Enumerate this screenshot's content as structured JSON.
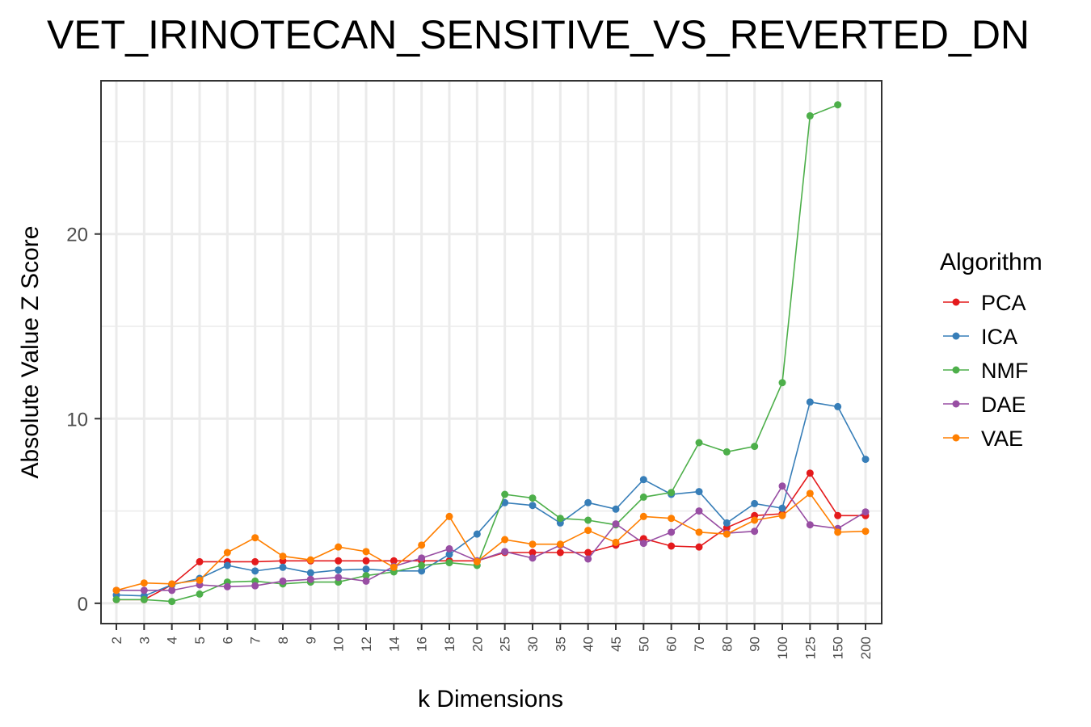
{
  "chart_data": {
    "type": "line",
    "title": "VET_IRINOTECAN_SENSITIVE_VS_REVERTED_DN",
    "xlabel": "k Dimensions",
    "ylabel": "Absolute Value Z Score",
    "categories": [
      "2",
      "3",
      "4",
      "5",
      "6",
      "7",
      "8",
      "9",
      "10",
      "12",
      "14",
      "16",
      "18",
      "20",
      "25",
      "30",
      "35",
      "40",
      "45",
      "50",
      "60",
      "70",
      "80",
      "90",
      "100",
      "125",
      "150",
      "200"
    ],
    "y_ticks": [
      0,
      10,
      20
    ],
    "ylim": [
      -1.1,
      28.3
    ],
    "grid": true,
    "legend": {
      "title": "Algorithm",
      "position": "right"
    },
    "series": [
      {
        "name": "PCA",
        "color": "#e41a1c",
        "values": [
          0.2,
          0.2,
          1.0,
          2.25,
          2.25,
          2.25,
          2.3,
          2.3,
          2.3,
          2.3,
          2.3,
          2.3,
          2.3,
          2.3,
          2.75,
          2.75,
          2.75,
          2.75,
          3.15,
          3.5,
          3.1,
          3.05,
          4.1,
          4.75,
          4.85,
          7.05,
          4.75,
          4.75
        ]
      },
      {
        "name": "ICA",
        "color": "#377eb8",
        "values": [
          0.45,
          0.4,
          1.0,
          1.35,
          2.05,
          1.75,
          1.95,
          1.65,
          1.8,
          1.85,
          1.75,
          1.75,
          2.65,
          3.75,
          5.45,
          5.3,
          4.35,
          5.45,
          5.1,
          6.7,
          5.9,
          6.05,
          4.35,
          5.4,
          5.15,
          10.9,
          10.65,
          7.8
        ]
      },
      {
        "name": "NMF",
        "color": "#4daf4a",
        "values": [
          0.2,
          0.2,
          0.1,
          0.5,
          1.15,
          1.2,
          1.05,
          1.15,
          1.15,
          1.5,
          1.7,
          2.05,
          2.2,
          2.05,
          5.9,
          5.7,
          4.6,
          4.5,
          4.25,
          5.75,
          6.0,
          8.7,
          8.2,
          8.5,
          11.95,
          26.4,
          27.0,
          null
        ]
      },
      {
        "name": "DAE",
        "color": "#984ea3",
        "values": [
          0.7,
          0.7,
          0.7,
          1.0,
          0.9,
          0.95,
          1.2,
          1.3,
          1.4,
          1.2,
          2.0,
          2.45,
          2.95,
          2.3,
          2.8,
          2.45,
          3.15,
          2.4,
          4.3,
          3.25,
          3.85,
          5.0,
          3.8,
          3.9,
          6.35,
          4.25,
          4.05,
          4.95
        ]
      },
      {
        "name": "VAE",
        "color": "#ff7f00",
        "values": [
          0.7,
          1.1,
          1.05,
          1.25,
          2.75,
          3.55,
          2.55,
          2.35,
          3.05,
          2.8,
          1.95,
          3.15,
          4.7,
          2.25,
          3.45,
          3.2,
          3.2,
          3.95,
          3.3,
          4.7,
          4.6,
          3.85,
          3.75,
          4.5,
          4.75,
          5.95,
          3.85,
          3.9
        ]
      }
    ]
  }
}
